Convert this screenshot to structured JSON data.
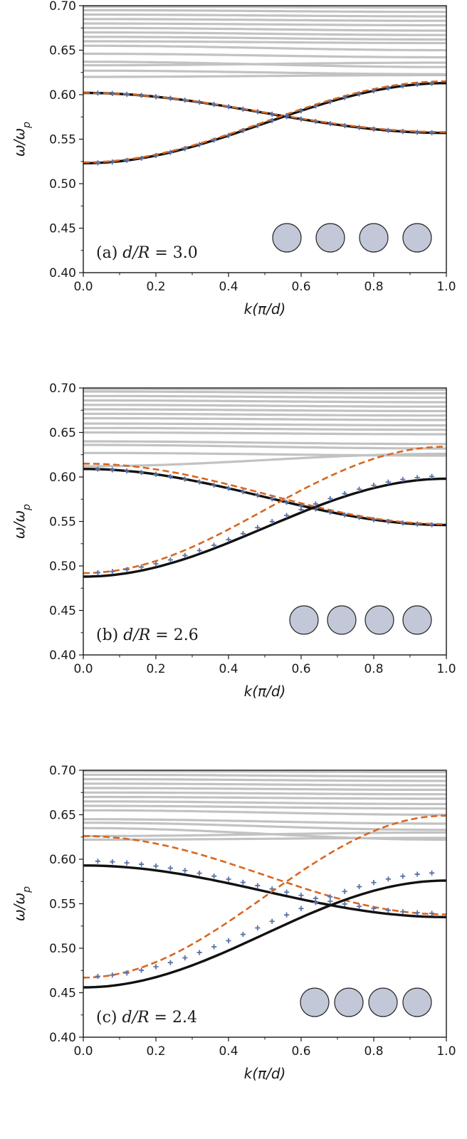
{
  "chart_data": [
    {
      "type": "line",
      "panel_label": "(a)",
      "param_text": "d/R = 3.0",
      "xlabel": "k(π/d)",
      "ylabel": "ω/ω_p",
      "xlim": [
        0.0,
        1.0
      ],
      "ylim": [
        0.4,
        0.7
      ],
      "xticks": [
        "0.0",
        "0.2",
        "0.4",
        "0.6",
        "0.8",
        "1.0"
      ],
      "yticks": [
        "0.40",
        "0.45",
        "0.50",
        "0.55",
        "0.60",
        "0.65",
        "0.70"
      ],
      "particle_count": 4,
      "bands": {
        "upper": {
          "exact": {
            "y0": 0.602,
            "y1": 0.557
          },
          "dashed": {
            "y0": 0.602,
            "y1": 0.558
          },
          "markers": {
            "y0": 0.602,
            "y1": 0.557
          }
        },
        "lower": {
          "exact": {
            "y0": 0.523,
            "y1": 0.613
          },
          "dashed": {
            "y0": 0.524,
            "y1": 0.615
          },
          "markers": {
            "y0": 0.523,
            "y1": 0.613
          }
        }
      },
      "gray_bands": [
        [
          0.62,
          0.622
        ],
        [
          0.627,
          0.623
        ],
        [
          0.633,
          0.636
        ],
        [
          0.637,
          0.631
        ],
        [
          0.646,
          0.642
        ],
        [
          0.655,
          0.65
        ],
        [
          0.66,
          0.658
        ],
        [
          0.665,
          0.662
        ],
        [
          0.67,
          0.667
        ],
        [
          0.675,
          0.672
        ],
        [
          0.68,
          0.678
        ],
        [
          0.685,
          0.683
        ],
        [
          0.69,
          0.688
        ],
        [
          0.695,
          0.693
        ],
        [
          0.699,
          0.698
        ]
      ]
    },
    {
      "type": "line",
      "panel_label": "(b)",
      "param_text": "d/R = 2.6",
      "xlabel": "k(π/d)",
      "ylabel": "ω/ω_p",
      "xlim": [
        0.0,
        1.0
      ],
      "ylim": [
        0.4,
        0.7
      ],
      "xticks": [
        "0.0",
        "0.2",
        "0.4",
        "0.6",
        "0.8",
        "1.0"
      ],
      "yticks": [
        "0.40",
        "0.45",
        "0.50",
        "0.55",
        "0.60",
        "0.65",
        "0.70"
      ],
      "particle_count": 4,
      "bands": {
        "upper": {
          "exact": {
            "y0": 0.609,
            "y1": 0.546
          },
          "dashed": {
            "y0": 0.615,
            "y1": 0.547
          },
          "markers": {
            "y0": 0.609,
            "y1": 0.546
          }
        },
        "lower": {
          "exact": {
            "y0": 0.488,
            "y1": 0.598
          },
          "dashed": {
            "y0": 0.492,
            "y1": 0.634
          },
          "markers": {
            "y0": 0.492,
            "y1": 0.601
          }
        }
      },
      "gray_bands": [
        [
          0.612,
          0.626
        ],
        [
          0.627,
          0.624
        ],
        [
          0.636,
          0.632
        ],
        [
          0.64,
          0.637
        ],
        [
          0.65,
          0.648
        ],
        [
          0.655,
          0.653
        ],
        [
          0.66,
          0.658
        ],
        [
          0.666,
          0.664
        ],
        [
          0.671,
          0.669
        ],
        [
          0.676,
          0.674
        ],
        [
          0.681,
          0.679
        ],
        [
          0.686,
          0.684
        ],
        [
          0.691,
          0.689
        ],
        [
          0.696,
          0.694
        ],
        [
          0.699,
          0.698
        ]
      ]
    },
    {
      "type": "line",
      "panel_label": "(c)",
      "param_text": "d/R = 2.4",
      "xlabel": "k(π/d)",
      "ylabel": "ω/ω_p",
      "xlim": [
        0.0,
        1.0
      ],
      "ylim": [
        0.4,
        0.7
      ],
      "xticks": [
        "0.0",
        "0.2",
        "0.4",
        "0.6",
        "0.8",
        "1.0"
      ],
      "yticks": [
        "0.40",
        "0.45",
        "0.50",
        "0.55",
        "0.60",
        "0.65",
        "0.70"
      ],
      "particle_count": 4,
      "bands": {
        "upper": {
          "exact": {
            "y0": 0.593,
            "y1": 0.535
          },
          "dashed": {
            "y0": 0.626,
            "y1": 0.538
          },
          "markers": {
            "y0": 0.598,
            "y1": 0.539
          }
        },
        "lower": {
          "exact": {
            "y0": 0.456,
            "y1": 0.576
          },
          "dashed": {
            "y0": 0.467,
            "y1": 0.649
          },
          "markers": {
            "y0": 0.468,
            "y1": 0.585
          }
        }
      },
      "gray_bands": [
        [
          0.622,
          0.624
        ],
        [
          0.626,
          0.63
        ],
        [
          0.635,
          0.622
        ],
        [
          0.641,
          0.633
        ],
        [
          0.645,
          0.64
        ],
        [
          0.655,
          0.65
        ],
        [
          0.66,
          0.657
        ],
        [
          0.665,
          0.662
        ],
        [
          0.67,
          0.668
        ],
        [
          0.675,
          0.673
        ],
        [
          0.68,
          0.678
        ],
        [
          0.685,
          0.683
        ],
        [
          0.69,
          0.688
        ],
        [
          0.695,
          0.693
        ],
        [
          0.699,
          0.698
        ]
      ]
    }
  ],
  "colors": {
    "exact": "#111111",
    "dashed": "#d9661f",
    "markers": "#5a72a8",
    "gray": "#c2c2c2",
    "particle_fill": "#c3c8d8",
    "particle_stroke": "#222222"
  }
}
